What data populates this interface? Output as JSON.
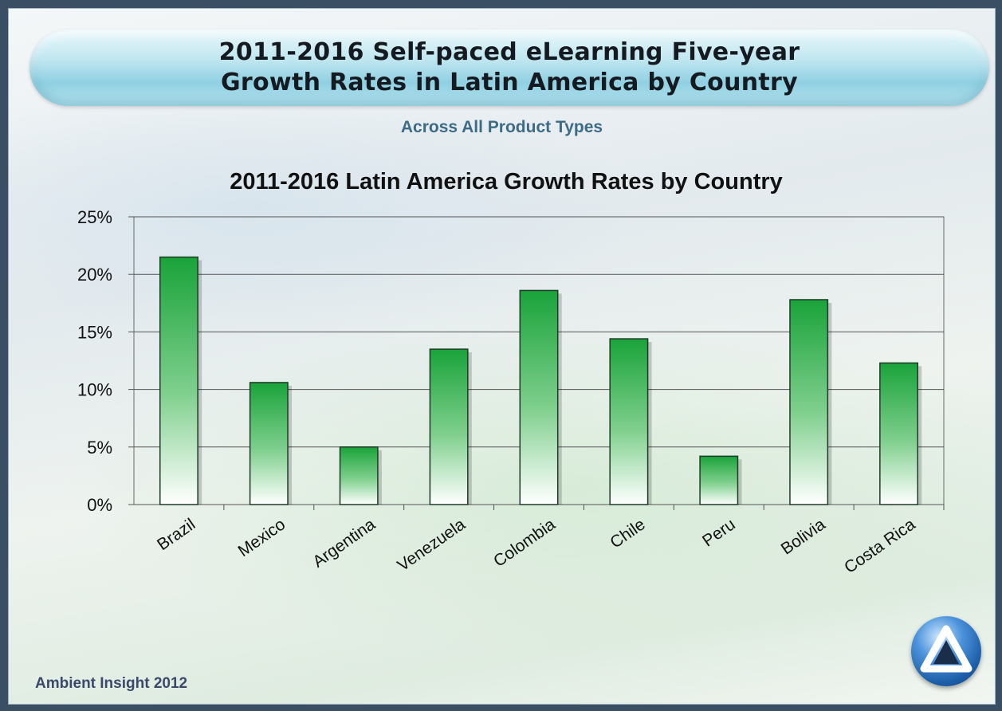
{
  "banner": {
    "line1": "2011-2016 Self-paced eLearning Five-year",
    "line2": "Growth Rates in Latin America by Country"
  },
  "subtitle": "Across  All  Product Types",
  "footer": "Ambient Insight  2012",
  "chart_data": {
    "type": "bar",
    "title": "2011-2016 Latin America Growth Rates by Country",
    "xlabel": "",
    "ylabel": "",
    "categories": [
      "Brazil",
      "Mexico",
      "Argentina",
      "Venezuela",
      "Colombia",
      "Chile",
      "Peru",
      "Bolivia",
      "Costa Rica"
    ],
    "values": [
      21.5,
      10.6,
      5.0,
      13.5,
      18.6,
      14.4,
      4.2,
      17.8,
      12.3
    ],
    "ylim": [
      0,
      25
    ],
    "yticks": [
      "0%",
      "5%",
      "10%",
      "15%",
      "20%",
      "25%"
    ],
    "grid": true,
    "legend": "none",
    "colors": {
      "bar_top": "#1aa33a",
      "bar_bottom": "#ffffff",
      "bar_edge": "#1f3a28"
    }
  }
}
